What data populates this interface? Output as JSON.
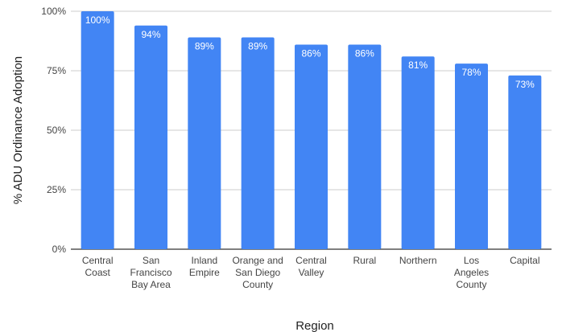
{
  "chart_data": {
    "type": "bar",
    "title": "",
    "xlabel": "Region",
    "ylabel": "% ADU Ordinance Adoption",
    "categories": [
      "Central Coast",
      "San Francisco Bay Area",
      "Inland Empire",
      "Orange and San Diego County",
      "Central Valley",
      "Rural",
      "Northern",
      "Los Angeles County",
      "Capital"
    ],
    "values": [
      100,
      94,
      89,
      89,
      86,
      86,
      81,
      78,
      73
    ],
    "data_labels": [
      "100%",
      "94%",
      "89%",
      "89%",
      "86%",
      "86%",
      "81%",
      "78%",
      "73%"
    ],
    "ylim": [
      0,
      100
    ],
    "yticks": [
      0,
      25,
      50,
      75,
      100
    ],
    "ytick_labels": [
      "0%",
      "25%",
      "50%",
      "75%",
      "100%"
    ],
    "grid": true,
    "legend": "none",
    "colors": {
      "bar": "#4285f4",
      "grid": "#cccccc",
      "axis": "#333333",
      "text": "#444444",
      "data_label": "#ffffff"
    }
  }
}
